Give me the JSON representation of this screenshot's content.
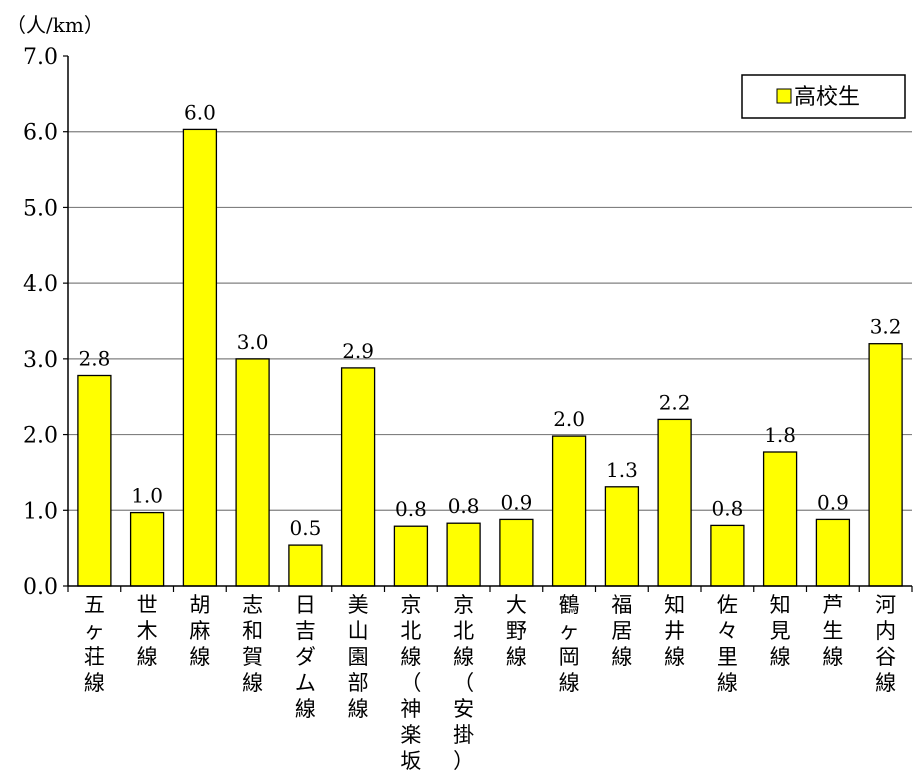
{
  "chart_data": {
    "type": "bar",
    "unit_label": "（人/km）",
    "categories": [
      "五ヶ荘線",
      "世木線",
      "胡麻線",
      "志和賀線",
      "日吉ダム線",
      "美山園部線",
      "京北線（神楽坂）",
      "京北線（安掛）",
      "大野線",
      "鶴ヶ岡線",
      "福居線",
      "知井線",
      "佐々里線",
      "知見線",
      "芦生線",
      "河内谷線"
    ],
    "series": [
      {
        "name": "高校生",
        "values": [
          2.8,
          1.0,
          6.0,
          3.0,
          0.5,
          2.9,
          0.8,
          0.8,
          0.9,
          2.0,
          1.3,
          2.2,
          0.8,
          1.8,
          0.9,
          3.2
        ],
        "bar_values": [
          2.78,
          0.97,
          6.03,
          3.0,
          0.54,
          2.88,
          0.79,
          0.83,
          0.88,
          1.98,
          1.31,
          2.2,
          0.8,
          1.77,
          0.88,
          3.2
        ],
        "labels": [
          "2.8",
          "1.0",
          "6.0",
          "3.0",
          "0.5",
          "2.9",
          "0.8",
          "0.8",
          "0.9",
          "2.0",
          "1.3",
          "2.2",
          "0.8",
          "1.8",
          "0.9",
          "3.2"
        ]
      }
    ],
    "yticks": [
      "0.0",
      "1.0",
      "2.0",
      "3.0",
      "4.0",
      "5.0",
      "6.0",
      "7.0"
    ],
    "ylim": [
      0,
      7
    ],
    "grid": true,
    "legend_position": "top-right",
    "colors": {
      "bar_fill": "#ffff00",
      "bar_stroke": "#000000",
      "grid": "#808080"
    }
  }
}
